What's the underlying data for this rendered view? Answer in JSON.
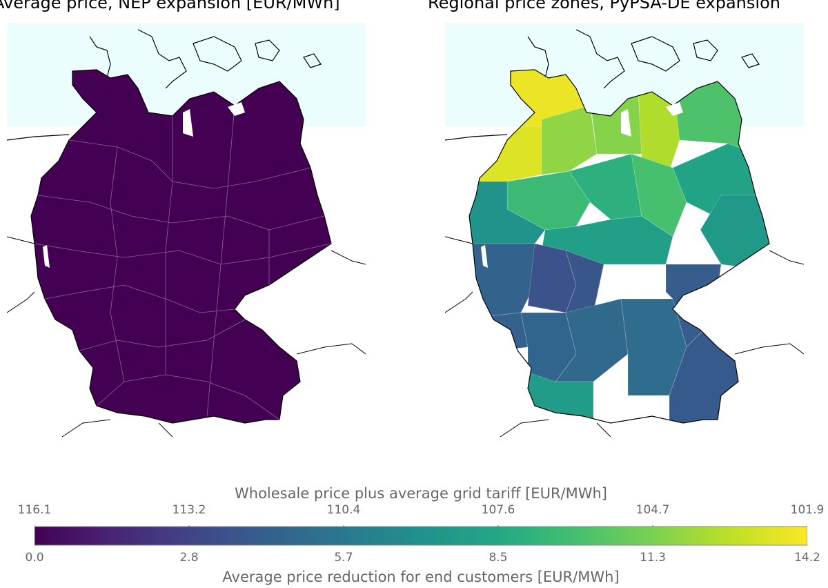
{
  "titles": {
    "left": "Average price, NEP expansion [EUR/MWh]",
    "right": "Regional price zones, PyPSA-DE expansion"
  },
  "colorbar": {
    "top_label": "Wholesale price plus average grid tariff [EUR/MWh]",
    "bottom_label": "Average price reduction for end customers [EUR/MWh]",
    "top_ticks": [
      "116.1",
      "113.2",
      "110.4",
      "107.6",
      "104.7",
      "101.9"
    ],
    "bottom_ticks": [
      "0.0",
      "2.8",
      "5.7",
      "8.5",
      "11.3",
      "14.2"
    ],
    "colormap": "viridis"
  },
  "colors": {
    "sea": "#ecfdfe",
    "land_uniform": "#440154",
    "border": "#000000"
  },
  "map_regions": {
    "left_uniform_reduction": 0.0,
    "right_zones_reduction": [
      13.8,
      13.5,
      11.8,
      11.6,
      12.5,
      10.2,
      9.6,
      9.0,
      10.0,
      8.2,
      7.6,
      7.2,
      8.0,
      4.5,
      3.6,
      3.8,
      4.4,
      4.6,
      4.8,
      5.0,
      4.2,
      4.0,
      7.8
    ]
  }
}
